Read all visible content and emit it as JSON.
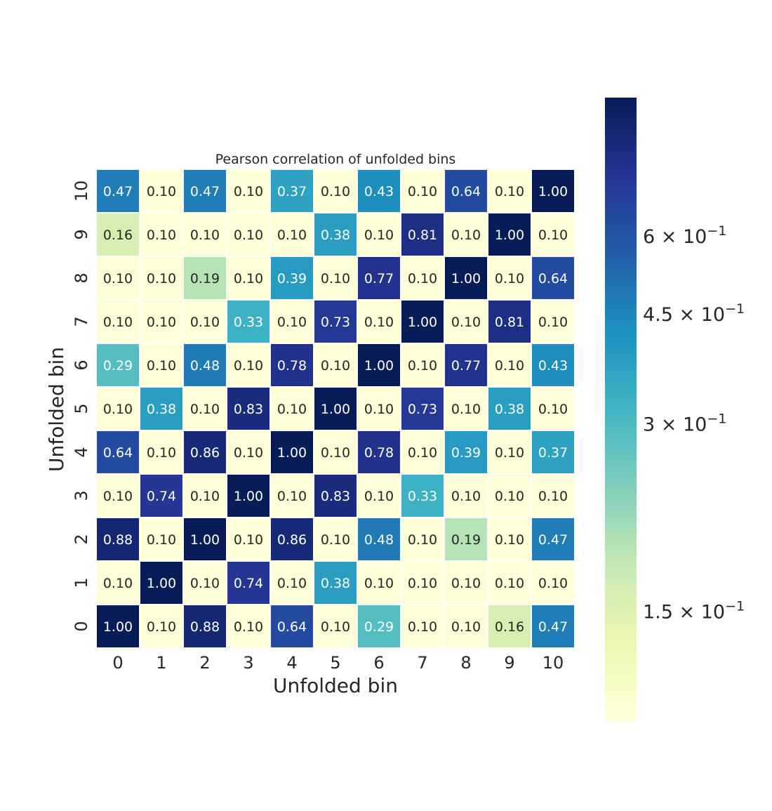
{
  "chart_data": {
    "type": "heatmap",
    "title": "Pearson correlation of unfolded bins",
    "xlabel": "Unfolded bin",
    "ylabel": "Unfolded bin",
    "x_categories": [
      "0",
      "1",
      "2",
      "3",
      "4",
      "5",
      "6",
      "7",
      "8",
      "9",
      "10"
    ],
    "y_categories": [
      "10",
      "9",
      "8",
      "7",
      "6",
      "5",
      "4",
      "3",
      "2",
      "1",
      "0"
    ],
    "values": [
      [
        "0.47",
        "0.10",
        "0.47",
        "0.10",
        "0.37",
        "0.10",
        "0.43",
        "0.10",
        "0.64",
        "0.10",
        "1.00"
      ],
      [
        "0.16",
        "0.10",
        "0.10",
        "0.10",
        "0.10",
        "0.38",
        "0.10",
        "0.81",
        "0.10",
        "1.00",
        "0.10"
      ],
      [
        "0.10",
        "0.10",
        "0.19",
        "0.10",
        "0.39",
        "0.10",
        "0.77",
        "0.10",
        "1.00",
        "0.10",
        "0.64"
      ],
      [
        "0.10",
        "0.10",
        "0.10",
        "0.33",
        "0.10",
        "0.73",
        "0.10",
        "1.00",
        "0.10",
        "0.81",
        "0.10"
      ],
      [
        "0.29",
        "0.10",
        "0.48",
        "0.10",
        "0.78",
        "0.10",
        "1.00",
        "0.10",
        "0.77",
        "0.10",
        "0.43"
      ],
      [
        "0.10",
        "0.38",
        "0.10",
        "0.83",
        "0.10",
        "1.00",
        "0.10",
        "0.73",
        "0.10",
        "0.38",
        "0.10"
      ],
      [
        "0.64",
        "0.10",
        "0.86",
        "0.10",
        "1.00",
        "0.10",
        "0.78",
        "0.10",
        "0.39",
        "0.10",
        "0.37"
      ],
      [
        "0.10",
        "0.74",
        "0.10",
        "1.00",
        "0.10",
        "0.83",
        "0.10",
        "0.33",
        "0.10",
        "0.10",
        "0.10"
      ],
      [
        "0.88",
        "0.10",
        "1.00",
        "0.10",
        "0.86",
        "0.10",
        "0.48",
        "0.10",
        "0.19",
        "0.10",
        "0.47"
      ],
      [
        "0.10",
        "1.00",
        "0.10",
        "0.74",
        "0.10",
        "0.38",
        "0.10",
        "0.10",
        "0.10",
        "0.10",
        "0.10"
      ],
      [
        "1.00",
        "0.10",
        "0.88",
        "0.10",
        "0.64",
        "0.10",
        "0.29",
        "0.10",
        "0.10",
        "0.16",
        "0.47"
      ]
    ],
    "colormap": "YlGnBu",
    "color_scale": "log",
    "vmin": 0.1,
    "vmax": 1.0,
    "colorbar": {
      "ticks": [
        {
          "value": 0.6,
          "mantissa": "6",
          "exponent": "−1"
        },
        {
          "value": 0.45,
          "mantissa": "4.5",
          "exponent": "−1"
        },
        {
          "value": 0.3,
          "mantissa": "3",
          "exponent": "−1"
        },
        {
          "value": 0.15,
          "mantissa": "1.5",
          "exponent": "−1"
        }
      ]
    },
    "colors": [
      "#ffffd9",
      "#edf8b1",
      "#c7e9b4",
      "#7fcdbb",
      "#41b6c4",
      "#1d91c0",
      "#225ea8",
      "#253494",
      "#081d58"
    ],
    "text_dark": "#262626",
    "text_light": "#ffffff"
  }
}
